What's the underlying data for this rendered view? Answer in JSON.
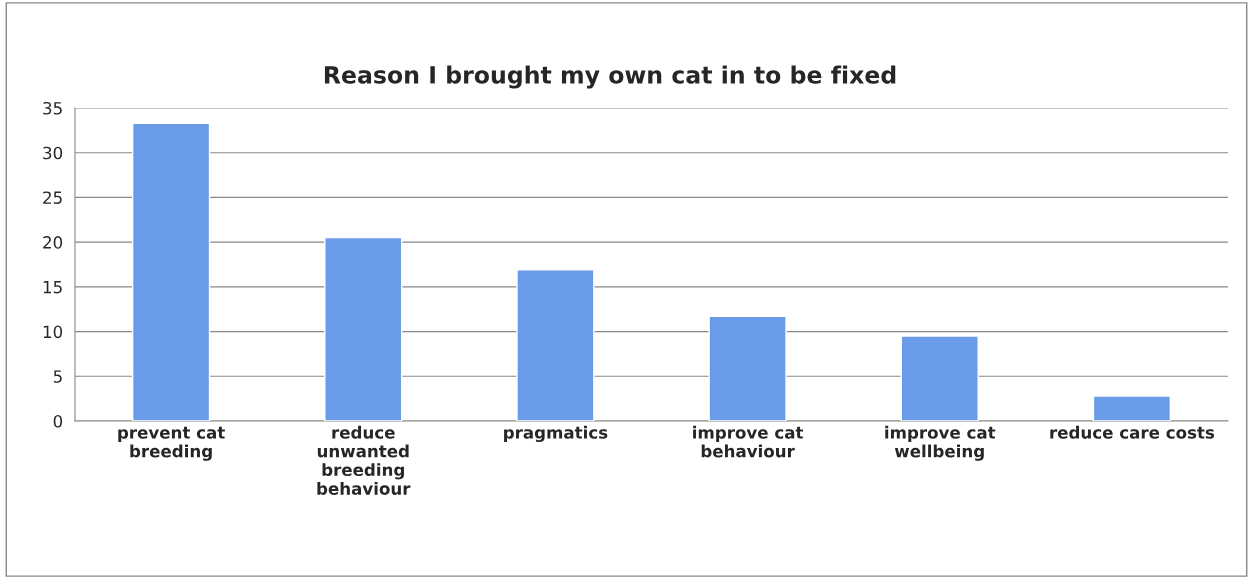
{
  "chart_data": {
    "type": "bar",
    "title": "Reason I brought my own cat in to be fixed",
    "categories": [
      "prevent cat\nbreeding",
      "reduce\nunwanted\nbreeding\nbehaviour",
      "pragmatics",
      "improve cat\nbehaviour",
      "improve cat\nwellbeing",
      "reduce care costs"
    ],
    "values": [
      33.3,
      20.5,
      16.9,
      11.7,
      9.5,
      2.8
    ],
    "color": "#6a9be6",
    "ylim": [
      0,
      35
    ],
    "yticks": [
      0,
      5,
      10,
      15,
      20,
      25,
      30,
      35
    ],
    "grid": "y"
  }
}
